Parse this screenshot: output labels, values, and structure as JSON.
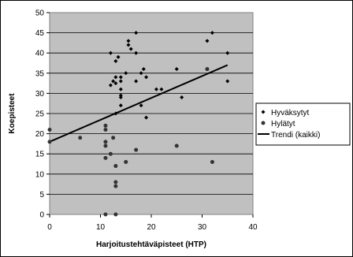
{
  "chart_data": {
    "type": "scatter",
    "xlabel": "Harjoitustehtäväpisteet (HTP)",
    "ylabel": "Koepisteet",
    "xlim": [
      0,
      40
    ],
    "ylim": [
      0,
      50
    ],
    "x_ticks": [
      "0",
      "10",
      "20",
      "30",
      "40"
    ],
    "y_ticks": [
      "0",
      "5",
      "10",
      "15",
      "20",
      "25",
      "30",
      "35",
      "40",
      "45",
      "50"
    ],
    "grid": "horizontal",
    "plot_background": "#c0c0c0",
    "legend_position": "right",
    "series": [
      {
        "name": "Hyväksytyt",
        "marker": "diamond",
        "color": "#000000",
        "points": [
          [
            12,
            40
          ],
          [
            12,
            32
          ],
          [
            12.5,
            33
          ],
          [
            13,
            34
          ],
          [
            13,
            38
          ],
          [
            13,
            32.5
          ],
          [
            13.5,
            39
          ],
          [
            14,
            34
          ],
          [
            14,
            33
          ],
          [
            14,
            31
          ],
          [
            14,
            29.5
          ],
          [
            14,
            29
          ],
          [
            14,
            27
          ],
          [
            13,
            25
          ],
          [
            15,
            35
          ],
          [
            15.5,
            43
          ],
          [
            15.5,
            42
          ],
          [
            16,
            41
          ],
          [
            17,
            45
          ],
          [
            17,
            40
          ],
          [
            17,
            33
          ],
          [
            18,
            35
          ],
          [
            18.5,
            36
          ],
          [
            19,
            34
          ],
          [
            19,
            24
          ],
          [
            18,
            27
          ],
          [
            21,
            31
          ],
          [
            22,
            31
          ],
          [
            25,
            36
          ],
          [
            26,
            29
          ],
          [
            31,
            43
          ],
          [
            32,
            45
          ],
          [
            35,
            40
          ],
          [
            35,
            33
          ]
        ]
      },
      {
        "name": "Hylätyt",
        "marker": "circle",
        "color": "#333333",
        "points": [
          [
            0,
            21
          ],
          [
            0,
            18
          ],
          [
            6,
            19
          ],
          [
            11,
            22
          ],
          [
            11,
            21
          ],
          [
            11,
            18
          ],
          [
            11,
            17
          ],
          [
            11,
            14
          ],
          [
            11,
            0
          ],
          [
            12,
            15
          ],
          [
            12.5,
            19
          ],
          [
            13,
            12
          ],
          [
            13,
            8
          ],
          [
            13,
            7
          ],
          [
            13,
            0
          ],
          [
            15,
            13
          ],
          [
            17,
            16
          ],
          [
            25,
            17
          ],
          [
            31,
            36
          ],
          [
            32,
            13
          ]
        ]
      }
    ],
    "trend": {
      "name": "Trendi (kaikki)",
      "color": "#000000",
      "x": [
        0,
        35
      ],
      "y": [
        18,
        37
      ]
    }
  }
}
